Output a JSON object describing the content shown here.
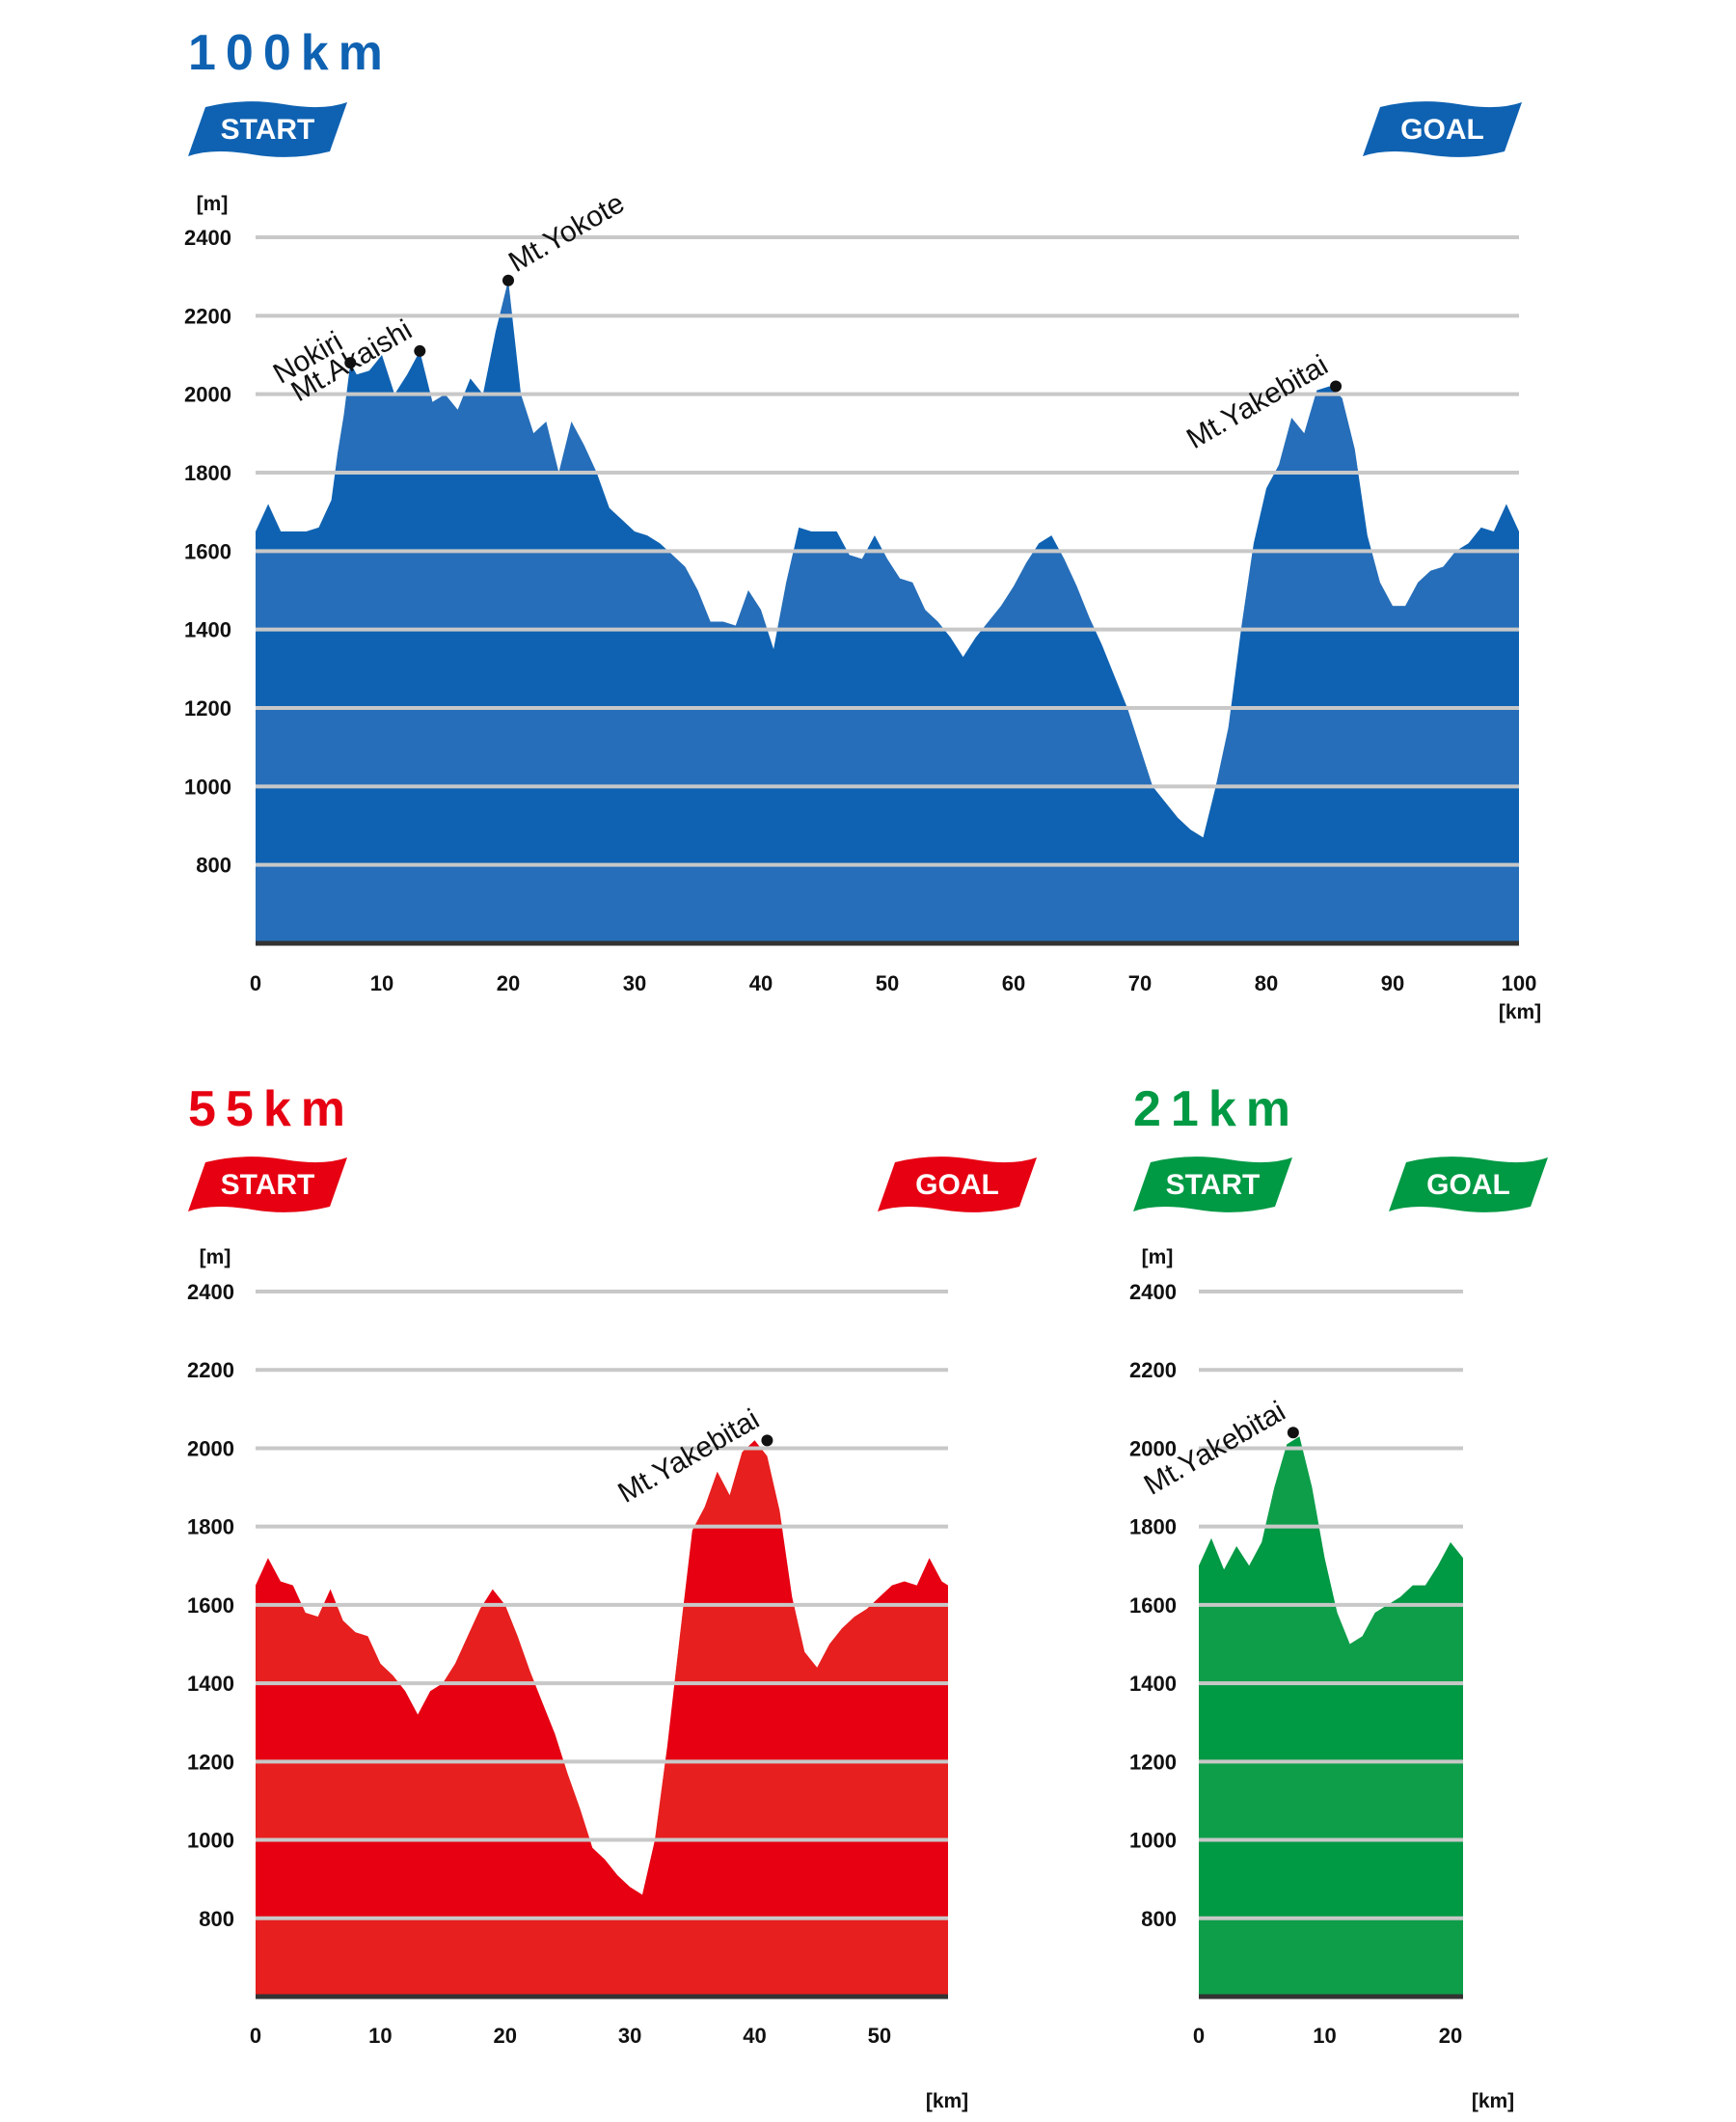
{
  "chart_data": [
    {
      "type": "area",
      "title": "100km",
      "color": "#0f62b2",
      "lightColor": "#3a78c0",
      "start_label": "START",
      "goal_label": "GOAL",
      "y_unit": "[m]",
      "x_unit": "[km]",
      "ylim": [
        600,
        2400
      ],
      "xlim": [
        0,
        100
      ],
      "y_ticks": [
        800,
        1000,
        1200,
        1400,
        1600,
        1800,
        2000,
        2200,
        2400
      ],
      "x_ticks": [
        0,
        10,
        20,
        30,
        40,
        50,
        60,
        70,
        80,
        90,
        100
      ],
      "grid": true,
      "x": [
        0,
        1,
        2,
        3,
        4,
        5,
        6,
        6.5,
        7,
        7.5,
        8,
        9,
        10,
        11,
        12,
        13,
        14,
        15,
        16,
        17,
        18,
        19,
        20,
        21,
        22,
        23,
        24,
        25,
        26,
        27,
        28,
        29,
        30,
        31,
        32,
        33,
        34,
        35,
        36,
        37,
        38,
        39,
        40,
        41,
        42,
        43,
        44,
        45,
        46,
        47,
        48,
        49,
        50,
        51,
        52,
        53,
        54,
        55,
        56,
        57,
        58,
        59,
        60,
        61,
        62,
        63,
        64,
        65,
        66,
        67,
        68,
        69,
        70,
        71,
        72,
        73,
        74,
        75,
        76,
        77,
        78,
        79,
        80,
        81,
        82,
        83,
        84,
        85,
        86,
        87,
        88,
        89,
        90,
        91,
        92,
        93,
        94,
        95,
        96,
        97,
        98,
        99,
        100
      ],
      "y": [
        1650,
        1720,
        1650,
        1650,
        1650,
        1660,
        1730,
        1850,
        1950,
        2080,
        2050,
        2060,
        2100,
        2000,
        2050,
        2110,
        1980,
        2000,
        1960,
        2040,
        2000,
        2160,
        2290,
        2000,
        1900,
        1930,
        1800,
        1930,
        1870,
        1800,
        1710,
        1680,
        1650,
        1640,
        1620,
        1590,
        1560,
        1500,
        1420,
        1420,
        1410,
        1500,
        1450,
        1350,
        1520,
        1660,
        1650,
        1650,
        1650,
        1590,
        1580,
        1640,
        1580,
        1530,
        1520,
        1450,
        1420,
        1380,
        1330,
        1380,
        1420,
        1460,
        1510,
        1570,
        1620,
        1640,
        1580,
        1510,
        1430,
        1360,
        1280,
        1200,
        1100,
        1000,
        960,
        920,
        890,
        870,
        1000,
        1150,
        1400,
        1620,
        1760,
        1820,
        1940,
        1900,
        2010,
        2020,
        1990,
        1860,
        1640,
        1520,
        1460,
        1460,
        1520,
        1550,
        1560,
        1600,
        1620,
        1660,
        1650,
        1720,
        1650
      ],
      "peaks": [
        {
          "name": "Nokiri",
          "x": 7.5,
          "y": 2080
        },
        {
          "name": "Mt.Akaishi",
          "x": 13,
          "y": 2110
        },
        {
          "name": "Mt.Yokote",
          "x": 20,
          "y": 2290
        },
        {
          "name": "Mt.Yakebitai",
          "x": 85.5,
          "y": 2020
        }
      ]
    },
    {
      "type": "area",
      "title": "55km",
      "color": "#e60012",
      "lightColor": "#e83828",
      "start_label": "START",
      "goal_label": "GOAL",
      "y_unit": "[m]",
      "x_unit": "[km]",
      "ylim": [
        600,
        2400
      ],
      "xlim": [
        0,
        55.5
      ],
      "y_ticks": [
        800,
        1000,
        1200,
        1400,
        1600,
        1800,
        2000,
        2200,
        2400
      ],
      "x_ticks": [
        0,
        10,
        20,
        30,
        40,
        50
      ],
      "grid": true,
      "x": [
        0,
        1,
        2,
        3,
        4,
        5,
        6,
        7,
        8,
        9,
        10,
        11,
        12,
        13,
        14,
        15,
        16,
        17,
        18,
        19,
        20,
        21,
        22,
        23,
        24,
        25,
        26,
        27,
        28,
        29,
        30,
        31,
        32,
        33,
        34,
        35,
        36,
        37,
        38,
        39,
        40,
        41,
        42,
        43,
        44,
        45,
        46,
        47,
        48,
        49,
        50,
        51,
        52,
        53,
        54,
        55,
        55.5
      ],
      "y": [
        1650,
        1720,
        1660,
        1650,
        1580,
        1570,
        1640,
        1560,
        1530,
        1520,
        1450,
        1420,
        1380,
        1320,
        1380,
        1400,
        1450,
        1520,
        1590,
        1640,
        1600,
        1520,
        1430,
        1350,
        1270,
        1170,
        1080,
        980,
        950,
        910,
        880,
        860,
        1000,
        1240,
        1520,
        1790,
        1850,
        1940,
        1880,
        1990,
        2020,
        1980,
        1840,
        1620,
        1480,
        1440,
        1500,
        1540,
        1570,
        1590,
        1620,
        1650,
        1660,
        1650,
        1720,
        1660,
        1650
      ],
      "peaks": [
        {
          "name": "Mt.Yakebitai",
          "x": 41,
          "y": 2020
        }
      ]
    },
    {
      "type": "area",
      "title": "21km",
      "color": "#009944",
      "lightColor": "#1aa350",
      "start_label": "START",
      "goal_label": "GOAL",
      "y_unit": "[m]",
      "x_unit": "[km]",
      "ylim": [
        600,
        2400
      ],
      "xlim": [
        0,
        21
      ],
      "y_ticks": [
        800,
        1000,
        1200,
        1400,
        1600,
        1800,
        2000,
        2200,
        2400
      ],
      "x_ticks": [
        0,
        10,
        20
      ],
      "grid": true,
      "x": [
        0,
        1,
        2,
        3,
        4,
        5,
        6,
        7,
        8,
        9,
        10,
        11,
        12,
        13,
        14,
        15,
        16,
        17,
        18,
        19,
        20,
        21
      ],
      "y": [
        1700,
        1770,
        1690,
        1750,
        1700,
        1760,
        1900,
        2010,
        2030,
        1900,
        1720,
        1580,
        1500,
        1520,
        1580,
        1600,
        1620,
        1650,
        1650,
        1700,
        1760,
        1720
      ],
      "peaks": [
        {
          "name": "Mt.Yakebitai",
          "x": 7.5,
          "y": 2040
        }
      ]
    }
  ]
}
